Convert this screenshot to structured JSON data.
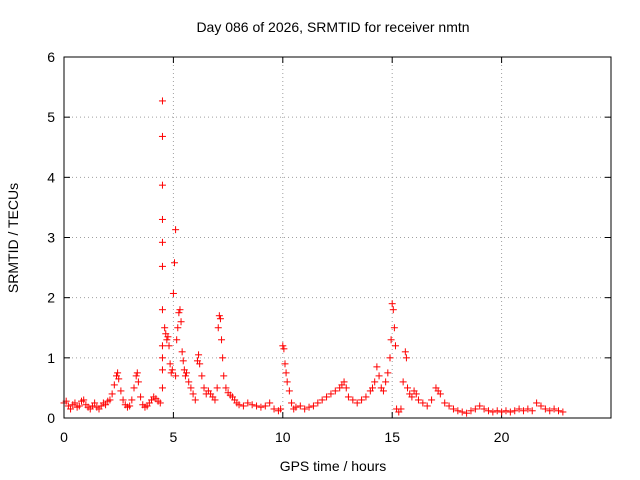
{
  "chart_data": {
    "type": "scatter",
    "title": "Day 086 of 2026, SRMTID for receiver nmtn",
    "xlabel": "GPS time / hours",
    "ylabel": "SRMTID / TECUs",
    "xlim": [
      0,
      25
    ],
    "ylim": [
      0,
      6
    ],
    "xticks": [
      0,
      5,
      10,
      15,
      20
    ],
    "xtick_labels": [
      "0",
      "5",
      "10",
      "15",
      "20"
    ],
    "yticks": [
      0,
      1,
      2,
      3,
      4,
      5,
      6
    ],
    "ytick_labels": [
      "0",
      "1",
      "2",
      "3",
      "4",
      "5",
      "6"
    ],
    "grid": true,
    "marker": "+",
    "series": [
      {
        "name": "SRMTID",
        "color": "#ff0000",
        "points": [
          [
            0.0,
            0.25
          ],
          [
            0.1,
            0.28
          ],
          [
            0.2,
            0.2
          ],
          [
            0.3,
            0.15
          ],
          [
            0.4,
            0.22
          ],
          [
            0.5,
            0.25
          ],
          [
            0.6,
            0.18
          ],
          [
            0.7,
            0.2
          ],
          [
            0.8,
            0.28
          ],
          [
            0.9,
            0.3
          ],
          [
            1.0,
            0.22
          ],
          [
            1.1,
            0.18
          ],
          [
            1.2,
            0.15
          ],
          [
            1.3,
            0.2
          ],
          [
            1.4,
            0.25
          ],
          [
            1.5,
            0.18
          ],
          [
            1.6,
            0.15
          ],
          [
            1.7,
            0.2
          ],
          [
            1.8,
            0.25
          ],
          [
            1.9,
            0.22
          ],
          [
            2.0,
            0.28
          ],
          [
            2.1,
            0.3
          ],
          [
            2.2,
            0.4
          ],
          [
            2.3,
            0.55
          ],
          [
            2.4,
            0.7
          ],
          [
            2.45,
            0.75
          ],
          [
            2.5,
            0.65
          ],
          [
            2.6,
            0.45
          ],
          [
            2.7,
            0.3
          ],
          [
            2.8,
            0.22
          ],
          [
            2.9,
            0.18
          ],
          [
            3.0,
            0.2
          ],
          [
            3.1,
            0.3
          ],
          [
            3.2,
            0.5
          ],
          [
            3.3,
            0.7
          ],
          [
            3.35,
            0.75
          ],
          [
            3.4,
            0.6
          ],
          [
            3.5,
            0.35
          ],
          [
            3.6,
            0.22
          ],
          [
            3.7,
            0.18
          ],
          [
            3.8,
            0.2
          ],
          [
            3.9,
            0.25
          ],
          [
            4.0,
            0.3
          ],
          [
            4.1,
            0.35
          ],
          [
            4.2,
            0.32
          ],
          [
            4.3,
            0.28
          ],
          [
            4.4,
            0.25
          ],
          [
            4.5,
            0.5
          ],
          [
            4.5,
            0.8
          ],
          [
            4.5,
            1.0
          ],
          [
            4.5,
            1.2
          ],
          [
            4.5,
            1.8
          ],
          [
            4.5,
            2.52
          ],
          [
            4.5,
            2.92
          ],
          [
            4.5,
            3.3
          ],
          [
            4.5,
            3.87
          ],
          [
            4.5,
            4.68
          ],
          [
            4.5,
            5.27
          ],
          [
            4.6,
            1.5
          ],
          [
            4.65,
            1.4
          ],
          [
            4.7,
            1.3
          ],
          [
            4.75,
            1.35
          ],
          [
            4.8,
            1.2
          ],
          [
            4.85,
            0.9
          ],
          [
            4.9,
            0.75
          ],
          [
            4.95,
            0.8
          ],
          [
            5.0,
            2.07
          ],
          [
            5.05,
            2.58
          ],
          [
            5.1,
            3.13
          ],
          [
            5.1,
            0.7
          ],
          [
            5.15,
            1.3
          ],
          [
            5.2,
            1.5
          ],
          [
            5.25,
            1.75
          ],
          [
            5.3,
            1.8
          ],
          [
            5.35,
            1.6
          ],
          [
            5.4,
            1.1
          ],
          [
            5.45,
            0.95
          ],
          [
            5.5,
            0.8
          ],
          [
            5.55,
            0.7
          ],
          [
            5.6,
            0.75
          ],
          [
            5.7,
            0.6
          ],
          [
            5.8,
            0.5
          ],
          [
            5.9,
            0.4
          ],
          [
            6.0,
            0.3
          ],
          [
            6.1,
            0.95
          ],
          [
            6.15,
            1.05
          ],
          [
            6.2,
            0.9
          ],
          [
            6.3,
            0.7
          ],
          [
            6.4,
            0.5
          ],
          [
            6.5,
            0.4
          ],
          [
            6.6,
            0.45
          ],
          [
            6.7,
            0.4
          ],
          [
            6.8,
            0.35
          ],
          [
            6.9,
            0.3
          ],
          [
            7.0,
            0.5
          ],
          [
            7.05,
            1.5
          ],
          [
            7.1,
            1.7
          ],
          [
            7.15,
            1.65
          ],
          [
            7.2,
            1.3
          ],
          [
            7.25,
            1.0
          ],
          [
            7.3,
            0.7
          ],
          [
            7.4,
            0.5
          ],
          [
            7.5,
            0.42
          ],
          [
            7.6,
            0.38
          ],
          [
            7.7,
            0.35
          ],
          [
            7.8,
            0.3
          ],
          [
            7.9,
            0.25
          ],
          [
            8.0,
            0.22
          ],
          [
            8.2,
            0.2
          ],
          [
            8.4,
            0.25
          ],
          [
            8.6,
            0.22
          ],
          [
            8.8,
            0.2
          ],
          [
            9.0,
            0.18
          ],
          [
            9.2,
            0.2
          ],
          [
            9.4,
            0.25
          ],
          [
            9.6,
            0.15
          ],
          [
            9.8,
            0.12
          ],
          [
            9.9,
            0.15
          ],
          [
            10.0,
            1.2
          ],
          [
            10.05,
            1.15
          ],
          [
            10.1,
            0.9
          ],
          [
            10.15,
            0.75
          ],
          [
            10.2,
            0.6
          ],
          [
            10.3,
            0.45
          ],
          [
            10.4,
            0.25
          ],
          [
            10.5,
            0.15
          ],
          [
            10.6,
            0.18
          ],
          [
            10.8,
            0.2
          ],
          [
            11.0,
            0.15
          ],
          [
            11.2,
            0.18
          ],
          [
            11.4,
            0.2
          ],
          [
            11.6,
            0.25
          ],
          [
            11.8,
            0.3
          ],
          [
            12.0,
            0.35
          ],
          [
            12.2,
            0.4
          ],
          [
            12.4,
            0.45
          ],
          [
            12.6,
            0.5
          ],
          [
            12.7,
            0.55
          ],
          [
            12.8,
            0.6
          ],
          [
            12.9,
            0.5
          ],
          [
            13.0,
            0.35
          ],
          [
            13.2,
            0.3
          ],
          [
            13.4,
            0.25
          ],
          [
            13.6,
            0.3
          ],
          [
            13.8,
            0.35
          ],
          [
            14.0,
            0.45
          ],
          [
            14.1,
            0.5
          ],
          [
            14.2,
            0.6
          ],
          [
            14.3,
            0.85
          ],
          [
            14.4,
            0.7
          ],
          [
            14.5,
            0.5
          ],
          [
            14.6,
            0.45
          ],
          [
            14.7,
            0.6
          ],
          [
            14.8,
            0.75
          ],
          [
            14.9,
            1.0
          ],
          [
            14.95,
            1.3
          ],
          [
            15.0,
            1.9
          ],
          [
            15.05,
            1.8
          ],
          [
            15.1,
            1.5
          ],
          [
            15.15,
            1.2
          ],
          [
            15.2,
            0.15
          ],
          [
            15.3,
            0.1
          ],
          [
            15.4,
            0.15
          ],
          [
            15.5,
            0.6
          ],
          [
            15.6,
            1.1
          ],
          [
            15.65,
            1.0
          ],
          [
            15.7,
            0.5
          ],
          [
            15.8,
            0.4
          ],
          [
            15.9,
            0.35
          ],
          [
            16.0,
            0.45
          ],
          [
            16.1,
            0.4
          ],
          [
            16.2,
            0.3
          ],
          [
            16.4,
            0.25
          ],
          [
            16.6,
            0.2
          ],
          [
            16.8,
            0.3
          ],
          [
            17.0,
            0.5
          ],
          [
            17.1,
            0.45
          ],
          [
            17.2,
            0.4
          ],
          [
            17.4,
            0.25
          ],
          [
            17.6,
            0.2
          ],
          [
            17.8,
            0.15
          ],
          [
            18.0,
            0.12
          ],
          [
            18.2,
            0.1
          ],
          [
            18.4,
            0.08
          ],
          [
            18.6,
            0.12
          ],
          [
            18.8,
            0.15
          ],
          [
            19.0,
            0.2
          ],
          [
            19.2,
            0.15
          ],
          [
            19.4,
            0.12
          ],
          [
            19.6,
            0.1
          ],
          [
            19.8,
            0.12
          ],
          [
            20.0,
            0.1
          ],
          [
            20.2,
            0.12
          ],
          [
            20.4,
            0.1
          ],
          [
            20.6,
            0.12
          ],
          [
            20.8,
            0.15
          ],
          [
            21.0,
            0.12
          ],
          [
            21.2,
            0.15
          ],
          [
            21.4,
            0.12
          ],
          [
            21.6,
            0.25
          ],
          [
            21.8,
            0.2
          ],
          [
            22.0,
            0.15
          ],
          [
            22.2,
            0.12
          ],
          [
            22.4,
            0.15
          ],
          [
            22.6,
            0.12
          ],
          [
            22.8,
            0.1
          ]
        ]
      }
    ]
  }
}
